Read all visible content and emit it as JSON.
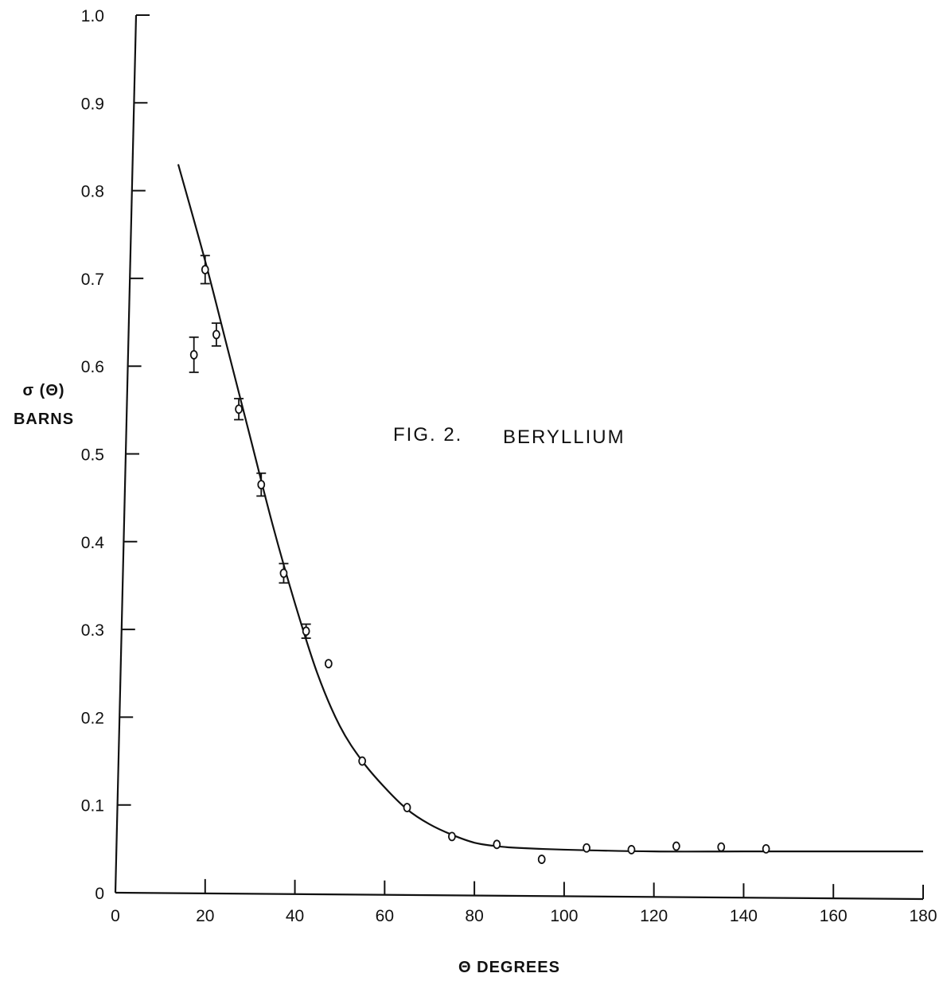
{
  "chart_data": {
    "type": "scatter",
    "title": "FIG. 2.",
    "subtitle": "BERYLLIUM",
    "xlabel": "Θ DEGREES",
    "ylabel_line1": "σ (Θ)",
    "ylabel_line2": "BARNS",
    "xlim": [
      0,
      180
    ],
    "ylim": [
      0,
      1.0
    ],
    "x_ticks": [
      0,
      20,
      40,
      60,
      80,
      100,
      120,
      140,
      160,
      180
    ],
    "x_tick_labels": [
      "0",
      "20",
      "40",
      "60",
      "80",
      "100",
      "120",
      "140",
      "160",
      "180"
    ],
    "y_ticks": [
      0,
      0.1,
      0.2,
      0.3,
      0.4,
      0.5,
      0.6,
      0.7,
      0.8,
      0.9,
      1.0
    ],
    "y_tick_labels": [
      "0",
      "0.1",
      "0.2",
      "0.3",
      "0.4",
      "0.5",
      "0.6",
      "0.7",
      "0.8",
      "0.9",
      "1.0"
    ],
    "grid": false,
    "series": [
      {
        "kind": "measured points",
        "x": [
          17.5,
          20,
          22.5,
          27.5,
          32.5,
          37.5,
          42.5,
          47.5,
          55,
          65,
          75,
          85,
          95,
          105,
          115,
          125,
          135,
          145
        ],
        "y": [
          0.613,
          0.71,
          0.636,
          0.551,
          0.465,
          0.364,
          0.298,
          0.261,
          0.15,
          0.097,
          0.064,
          0.055,
          0.038,
          0.051,
          0.049,
          0.053,
          0.052,
          0.05
        ],
        "err": [
          0.02,
          0.016,
          0.013,
          0.012,
          0.013,
          0.011,
          0.008,
          0,
          0,
          0,
          0,
          0,
          0,
          0,
          0,
          0,
          0,
          0
        ]
      },
      {
        "kind": "fitted curve",
        "x": [
          14,
          20,
          25,
          30,
          35,
          40,
          45,
          50,
          55,
          60,
          65,
          70,
          75,
          80,
          85,
          90,
          100,
          120,
          140,
          160,
          180
        ],
        "y": [
          0.83,
          0.72,
          0.62,
          0.52,
          0.42,
          0.33,
          0.25,
          0.19,
          0.15,
          0.12,
          0.095,
          0.078,
          0.066,
          0.057,
          0.053,
          0.051,
          0.049,
          0.047,
          0.047,
          0.047,
          0.047
        ]
      }
    ]
  }
}
